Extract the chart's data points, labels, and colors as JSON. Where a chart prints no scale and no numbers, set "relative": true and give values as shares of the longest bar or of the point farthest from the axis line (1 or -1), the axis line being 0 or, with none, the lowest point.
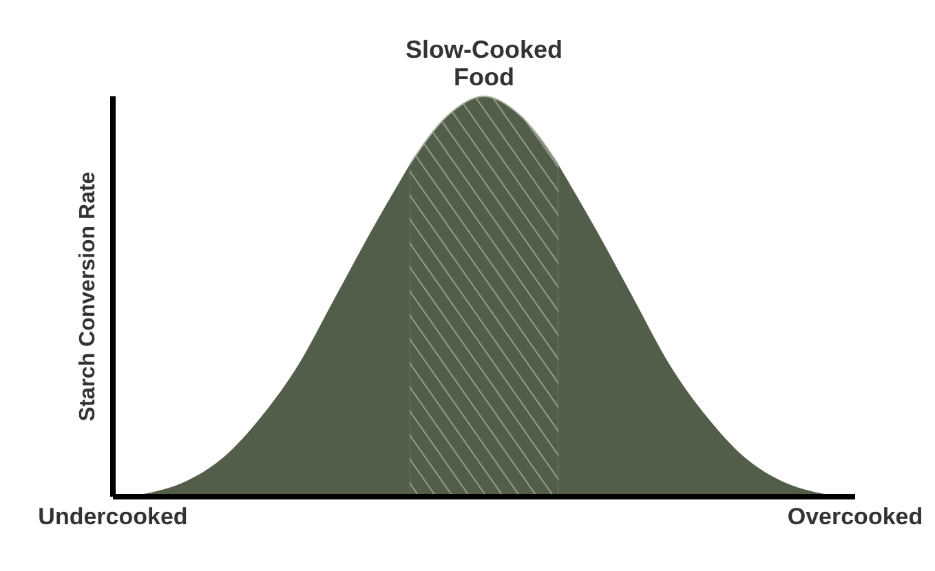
{
  "chart_data": {
    "type": "area",
    "relative": true,
    "ylabel": "Starch Conversion Rate",
    "categories": [
      "Undercooked",
      null,
      null,
      null,
      null,
      null,
      null,
      null,
      null,
      null,
      null,
      null,
      null,
      null,
      null,
      null,
      null,
      null,
      null,
      null,
      "Overcooked"
    ],
    "series": [
      {
        "color": "#535e4a",
        "values": [
          0,
          0.01,
          0.04,
          0.1,
          0.2,
          0.33,
          0.5,
          0.67,
          0.83,
          null,
          null,
          null,
          0.83,
          0.67,
          0.5,
          0.33,
          0.2,
          0.1,
          0.04,
          0.01,
          0
        ]
      },
      {
        "name": "Slow-Cooked Food",
        "color": "#a9b0a0",
        "values": [
          null,
          null,
          null,
          null,
          null,
          null,
          null,
          null,
          0.83,
          0.95,
          1,
          0.95,
          0.83,
          null,
          null,
          null,
          null,
          null,
          null,
          null,
          null
        ]
      }
    ]
  }
}
